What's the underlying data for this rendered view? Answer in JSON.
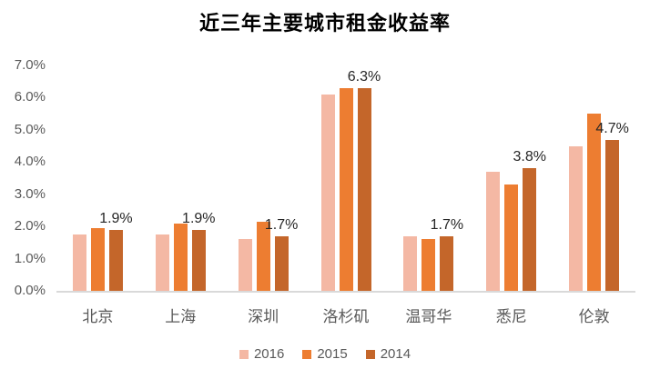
{
  "title": "近三年主要城市租金收益率",
  "chart_data": {
    "type": "bar",
    "title": "近三年主要城市租金收益率",
    "categories": [
      "北京",
      "上海",
      "深圳",
      "洛杉矶",
      "温哥华",
      "悉尼",
      "伦敦"
    ],
    "series": [
      {
        "name": "2016",
        "color": "#F4B8A4",
        "values": [
          1.75,
          1.75,
          1.6,
          6.1,
          1.7,
          3.7,
          4.5
        ]
      },
      {
        "name": "2015",
        "color": "#ED7D31",
        "values": [
          1.95,
          2.1,
          2.15,
          6.3,
          1.6,
          3.3,
          5.5
        ]
      },
      {
        "name": "2014",
        "color": "#C4662A",
        "values": [
          1.9,
          1.9,
          1.7,
          6.3,
          1.7,
          3.8,
          4.7
        ]
      }
    ],
    "data_labels": {
      "series": "2014",
      "values": [
        "1.9%",
        "1.9%",
        "1.7%",
        "6.3%",
        "1.7%",
        "3.8%",
        "4.7%"
      ]
    },
    "y_axis": {
      "ticks": [
        "7.0%",
        "6.0%",
        "5.0%",
        "4.0%",
        "3.0%",
        "2.0%",
        "1.0%",
        "0.0%"
      ],
      "min": 0,
      "max": 7,
      "unit": "%"
    },
    "legend": {
      "position": "bottom"
    },
    "grid": false,
    "styles": {
      "axis_line_color": "#D9D9D9",
      "axis_text_color": "#595959",
      "data_label_color": "#262626",
      "title_color": "#000000",
      "background": "#FFFFFF"
    }
  }
}
